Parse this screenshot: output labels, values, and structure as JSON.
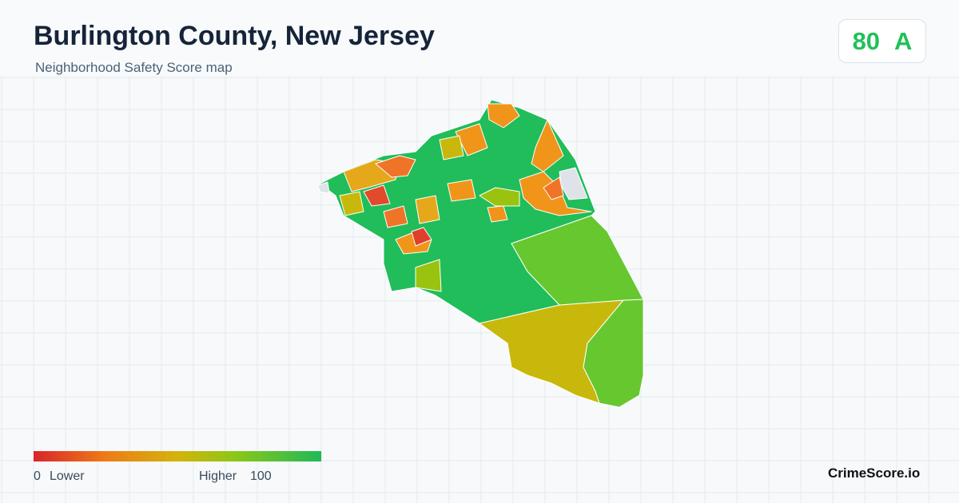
{
  "header": {
    "title": "Burlington County, New Jersey",
    "subtitle": "Neighborhood Safety Score map"
  },
  "score": {
    "value": 80,
    "grade": "A"
  },
  "legend": {
    "min": 0,
    "min_label": "Lower",
    "max_label": "Higher",
    "max": 100
  },
  "brand": "CrimeScore.io"
}
